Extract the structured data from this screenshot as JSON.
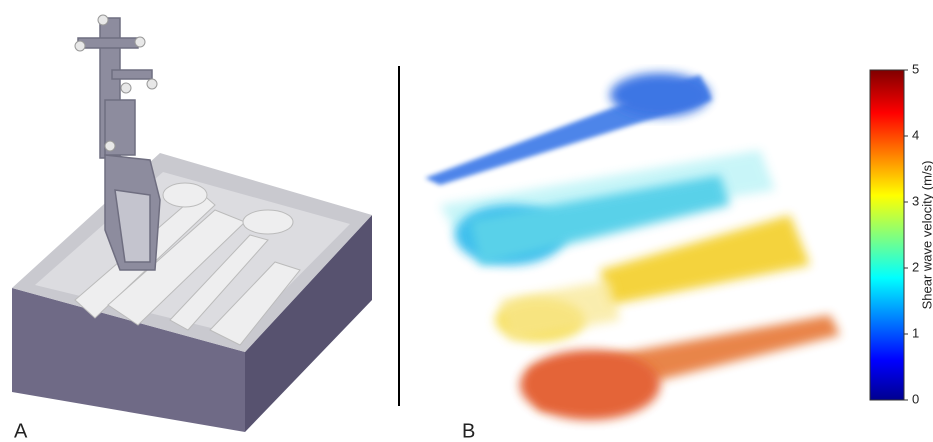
{
  "panels": [
    {
      "label": "A"
    },
    {
      "label": "B"
    }
  ],
  "colorbar": {
    "label": "Shear wave velocity (m/s)",
    "lim": [
      0,
      5
    ],
    "ticks": [
      0,
      1,
      2,
      3,
      4,
      5
    ]
  }
}
